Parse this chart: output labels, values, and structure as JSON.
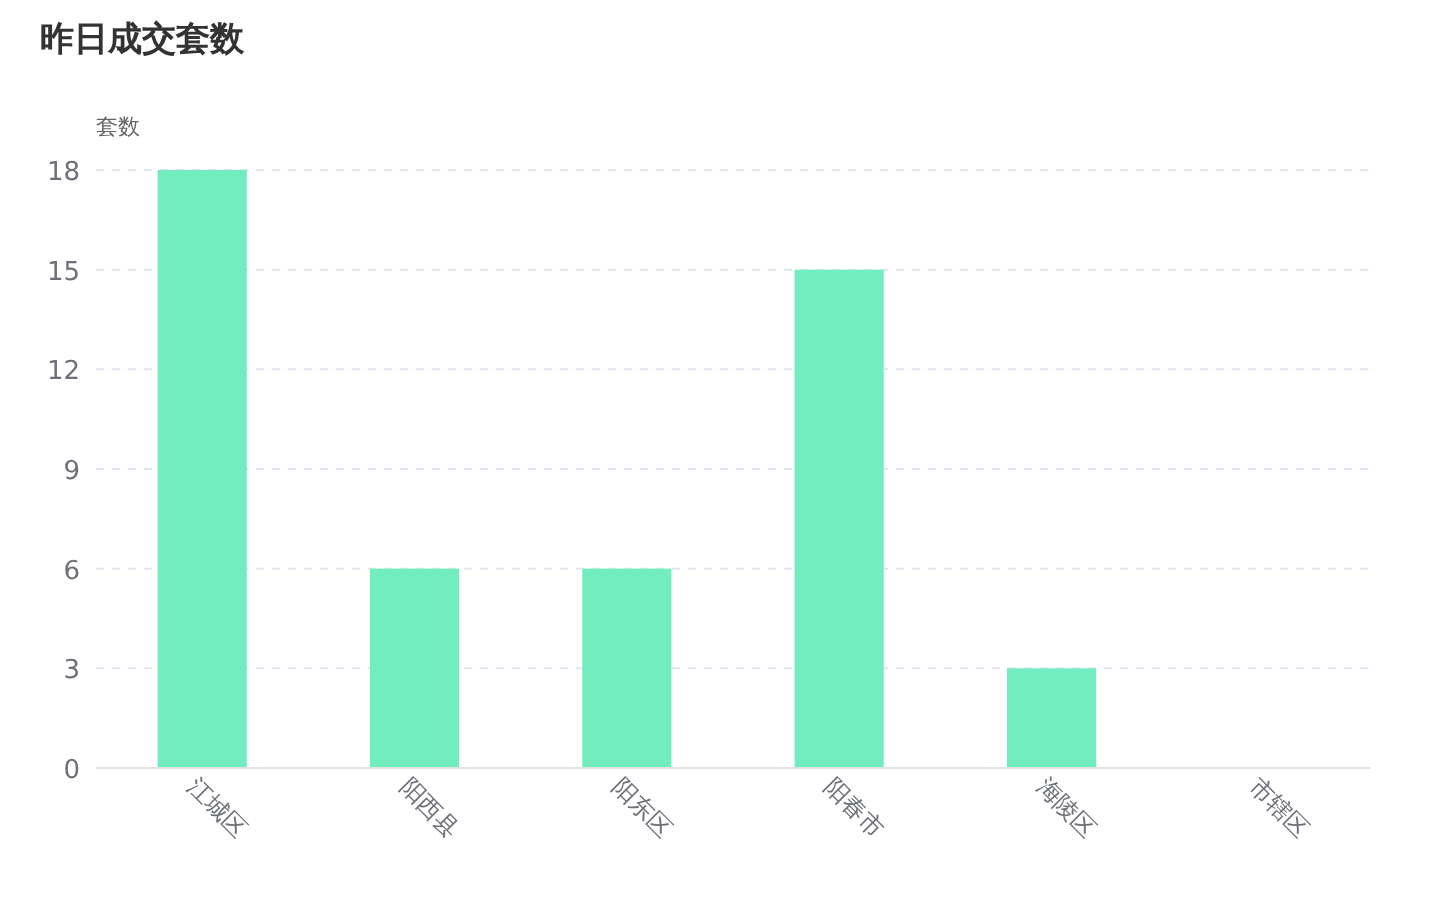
{
  "chart_data": {
    "type": "bar",
    "title": "昨日成交套数",
    "ylabel": "套数",
    "categories": [
      "江城区",
      "阳西县",
      "阳东区",
      "阳春市",
      "海陵区",
      "市辖区"
    ],
    "values": [
      18,
      6,
      6,
      15,
      3,
      0
    ],
    "color": "#72edc0",
    "ylim": [
      0,
      18
    ],
    "yticks": [
      0,
      3,
      6,
      9,
      12,
      15,
      18
    ],
    "grid": "y"
  }
}
